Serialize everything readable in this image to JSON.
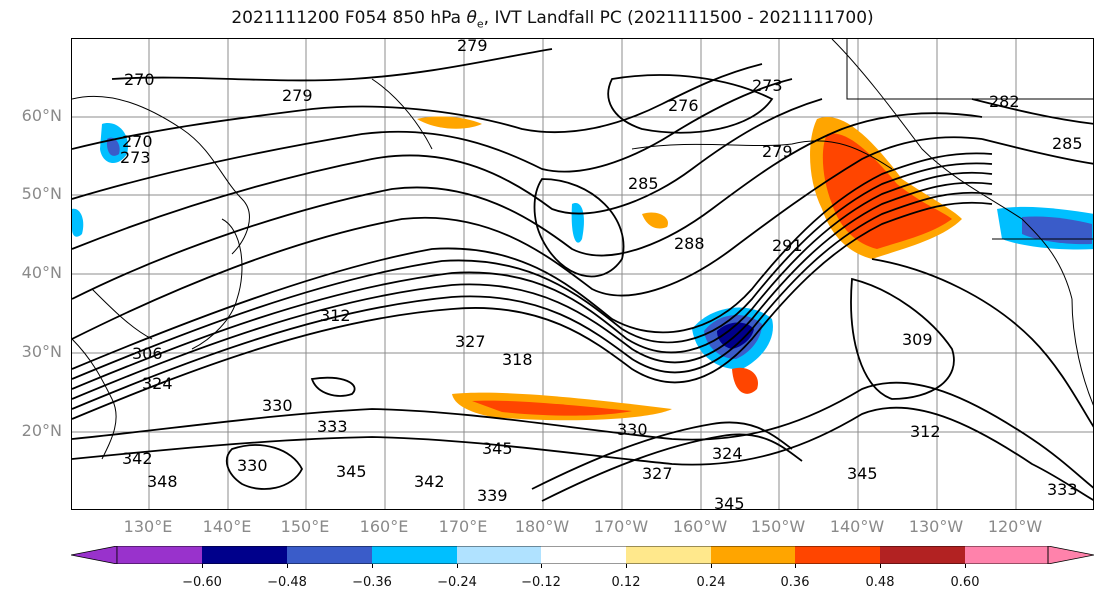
{
  "title": {
    "prefix": "2021111200 F054 850 hPa ",
    "theta": "θ",
    "theta_sub": "e",
    "suffix": ", IVT Landfall PC (2021111500 - 2021111700)"
  },
  "axes": {
    "lat_labels": [
      "60°N",
      "50°N",
      "40°N",
      "30°N",
      "20°N"
    ],
    "lon_labels": [
      "130°E",
      "140°E",
      "150°E",
      "160°E",
      "170°E",
      "180°W",
      "170°W",
      "160°W",
      "150°W",
      "140°W",
      "130°W",
      "120°W"
    ]
  },
  "colorbar": {
    "colors": [
      "#9932CC",
      "#00008B",
      "#3A5CC9",
      "#00BFFF",
      "#B0E2FF",
      "#FFFFFF",
      "#FFE88C",
      "#FFA500",
      "#FF4500",
      "#B22222",
      "#FF82AB"
    ],
    "ticks": [
      "−0.60",
      "−0.48",
      "−0.36",
      "−0.24",
      "−0.12",
      "0.12",
      "0.24",
      "0.36",
      "0.48",
      "0.60"
    ]
  },
  "contour_labels": [
    "279",
    "270",
    "279",
    "276",
    "273",
    "282",
    "279",
    "285",
    "270",
    "273",
    "285",
    "288",
    "291",
    "312",
    "327",
    "318",
    "309",
    "306",
    "324",
    "330",
    "333",
    "330",
    "342",
    "345",
    "348",
    "330",
    "345",
    "342",
    "339",
    "327",
    "324",
    "345",
    "345",
    "312",
    "333"
  ],
  "colors": {
    "positive_strong": "#FF4500",
    "positive_mid": "#FFA500",
    "negative_strong": "#00008B",
    "negative_mid": "#00BFFF",
    "contour": "#000000",
    "grid": "#8c8c8c",
    "coast": "#000000"
  }
}
